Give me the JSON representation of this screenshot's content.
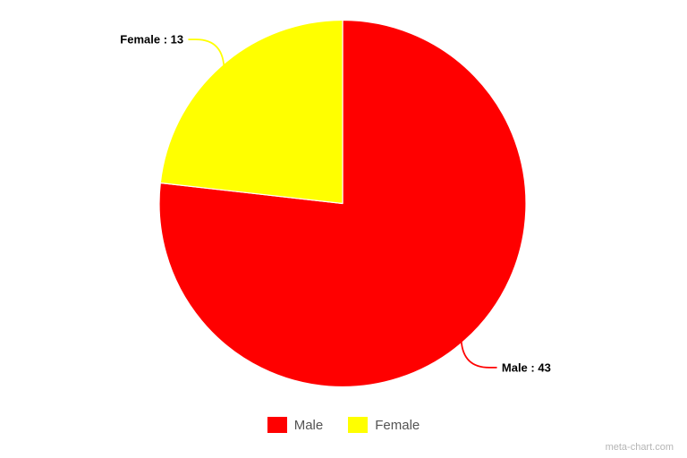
{
  "chart_data": {
    "type": "pie",
    "categories": [
      "Male",
      "Female"
    ],
    "values": [
      43,
      13
    ],
    "colors": [
      "#ff0000",
      "#ffff00"
    ],
    "slice_labels": [
      "Male : 43",
      "Female : 13"
    ],
    "title": "",
    "legend": {
      "position": "bottom",
      "labels": [
        "Male",
        "Female"
      ]
    },
    "slice_border_color": "#ffffff",
    "label_text_color": "#000000",
    "legend_text_color": "#545454",
    "start_angle_deg": 0,
    "direction": "clockwise"
  },
  "watermark": "meta-chart.com"
}
